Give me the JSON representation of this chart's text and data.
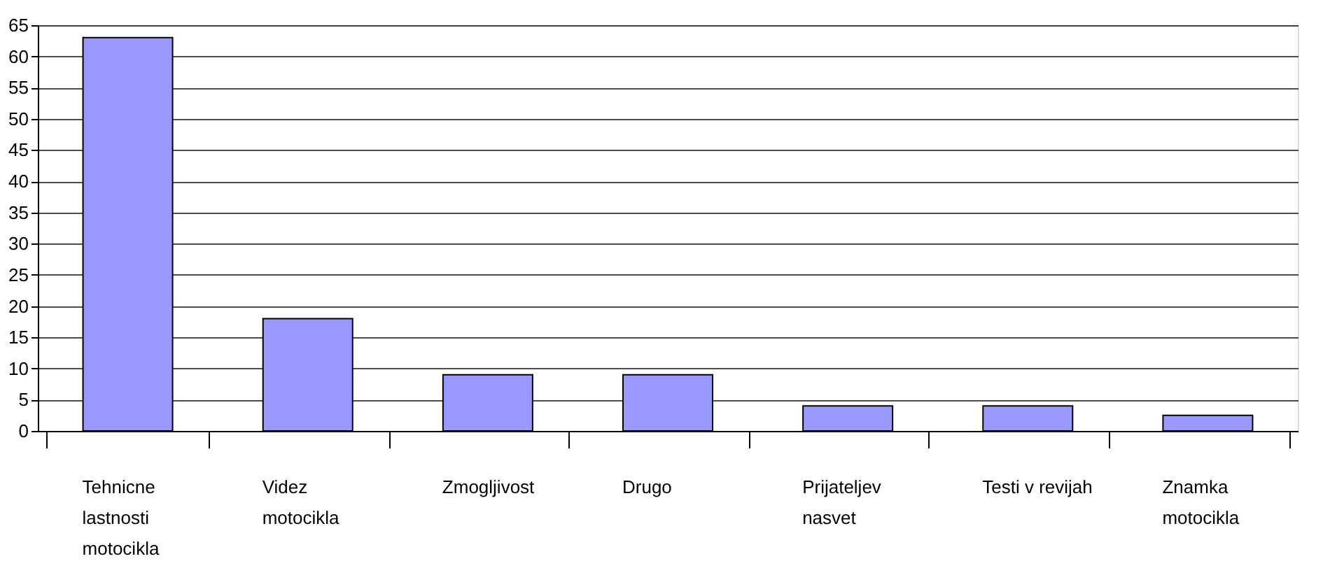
{
  "chart_data": {
    "type": "bar",
    "categories": [
      "Tehnicne lastnosti motocikla",
      "Videz motocikla",
      "Zmogljivost",
      "Drugo",
      "Prijateljev nasvet",
      "Testi v revijah",
      "Znamka motocikla"
    ],
    "values": [
      63,
      18,
      9,
      9,
      4,
      4,
      2.5
    ],
    "color": "#9999ff",
    "ylim": [
      0,
      65
    ],
    "yticks": [
      0,
      5,
      10,
      15,
      20,
      25,
      30,
      35,
      40,
      45,
      50,
      55,
      60,
      65
    ],
    "grid": "y"
  }
}
